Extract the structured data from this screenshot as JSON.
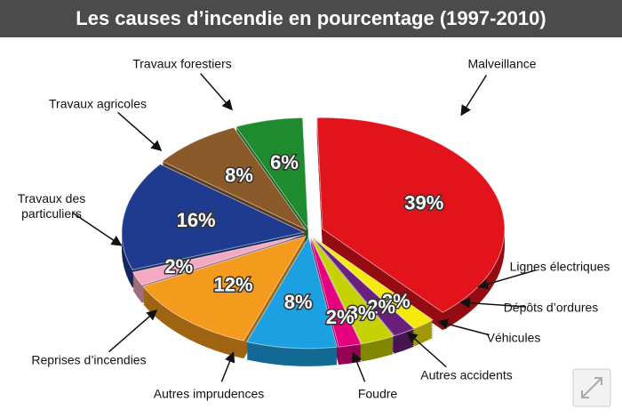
{
  "chart_data": {
    "type": "pie",
    "title": "Les causes d’incendie en pourcentage (1997-2010)",
    "categories": [
      "Malveillance",
      "Lignes électriques",
      "Dépôts d’ordures",
      "Véhicules",
      "Autres accidents",
      "Foudre",
      "Autres imprudences",
      "Reprises d’incendies",
      "Travaux des particuliers",
      "Travaux agricoles",
      "Travaux forestiers"
    ],
    "values": [
      39,
      2,
      2,
      3,
      2,
      8,
      12,
      2,
      16,
      8,
      6
    ],
    "value_labels": [
      "39%",
      "2%",
      "2%",
      "3%",
      "2%",
      "8%",
      "12%",
      "2%",
      "16%",
      "8%",
      "6%"
    ],
    "colors": [
      "#e3131b",
      "#f6ea0c",
      "#6b1f7c",
      "#c5d200",
      "#e4007f",
      "#1ba1e2",
      "#f49a1c",
      "#f4a9c2",
      "#1e3b8f",
      "#8b5a2b",
      "#1f8b2f"
    ]
  }
}
